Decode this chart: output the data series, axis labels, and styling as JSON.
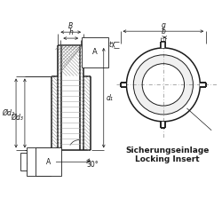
{
  "bg_color": "#ffffff",
  "line_color": "#1a1a1a",
  "dim_color": "#1a1a1a",
  "text1": "Sicherungseinlage",
  "text2": "Locking Insert",
  "label_B": "B",
  "label_h": "h",
  "label_A": "A",
  "label_d1": "d₁",
  "label_d2": "Ød₂",
  "label_d3": "Ød₃",
  "label_x": "x",
  "label_30": "30°",
  "label_g": "g",
  "label_b": "b",
  "label_t": "t"
}
